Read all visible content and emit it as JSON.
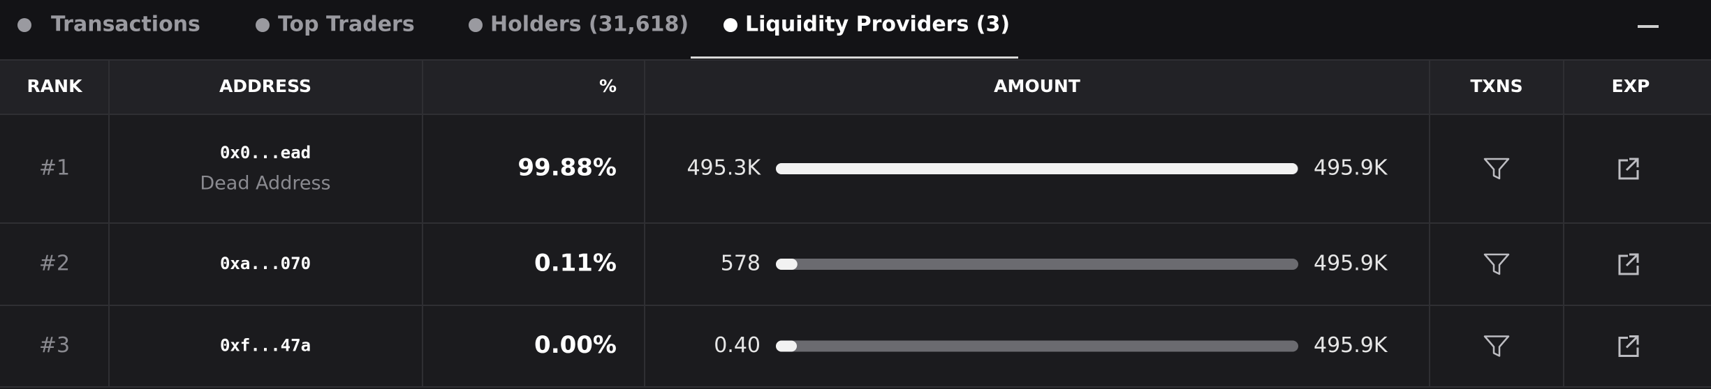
{
  "tabs": [
    "Transactions",
    "Top Traders",
    "Holders (31,618)",
    "Liquidity Providers (3)"
  ],
  "table": {
    "columns": [
      "RANK",
      "ADDRESS",
      "%",
      "AMOUNT",
      "TXNS",
      "EXP"
    ],
    "rows": [
      {
        "rank": "#1",
        "address": "0x0...ead",
        "address_label": "Dead Address",
        "percent": "99.88%",
        "amount": "495.3K",
        "total": "495.9K"
      },
      {
        "rank": "#2",
        "address": "0xa...070",
        "percent": "0.11%",
        "amount": "578",
        "total": "495.9K"
      },
      {
        "rank": "#3",
        "address": "0xf...47a",
        "percent": "0.00%",
        "amount": "0.40",
        "total": "495.9K"
      }
    ]
  }
}
